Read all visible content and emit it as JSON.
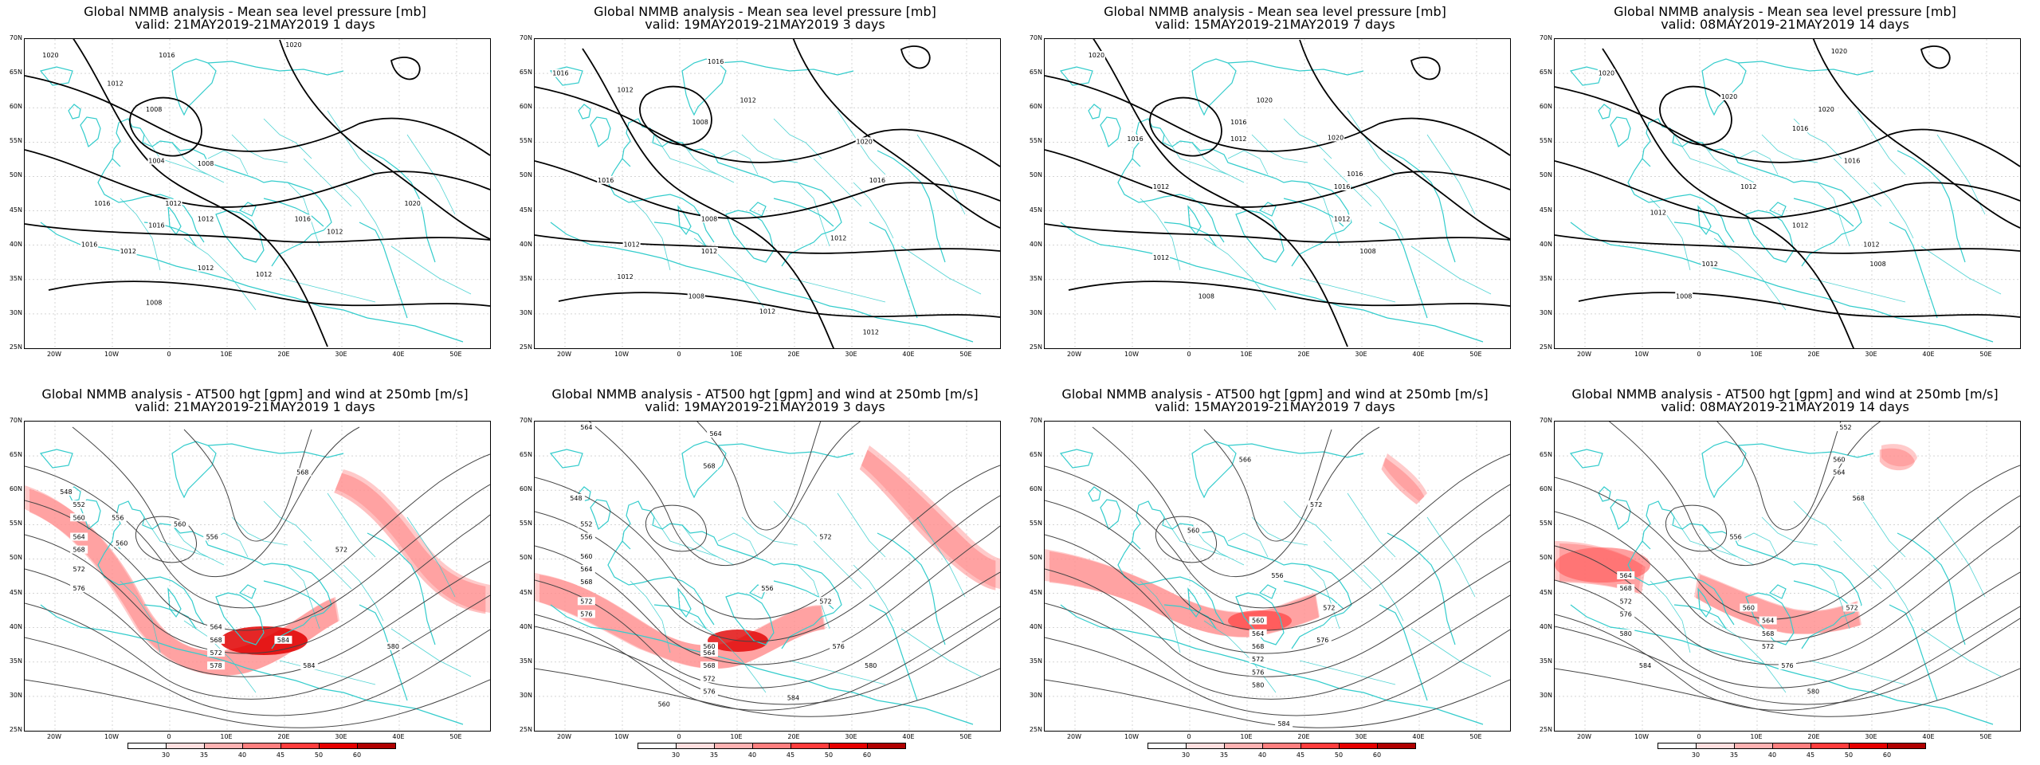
{
  "panels": [
    {
      "title1": "Global NMMB analysis - Mean sea level pressure [mb]",
      "title2": "valid: 21MAY2019-21MAY2019   1 days",
      "kind": "mslp",
      "labels": [
        [
          "1020",
          20,
          13
        ],
        [
          "1016",
          110,
          13
        ],
        [
          "1020",
          208,
          5
        ],
        [
          "1012",
          70,
          35
        ],
        [
          "1008",
          100,
          55
        ],
        [
          "1004",
          102,
          95
        ],
        [
          "1008",
          140,
          97
        ],
        [
          "1012",
          115,
          128
        ],
        [
          "1016",
          60,
          128
        ],
        [
          "1016",
          102,
          145
        ],
        [
          "1012",
          140,
          140
        ],
        [
          "1016",
          215,
          140
        ],
        [
          "1020",
          300,
          128
        ],
        [
          "1012",
          240,
          150
        ],
        [
          "1016",
          50,
          160
        ],
        [
          "1012",
          80,
          165
        ],
        [
          "1012",
          140,
          178
        ],
        [
          "1012",
          185,
          183
        ],
        [
          "1008",
          100,
          205
        ]
      ]
    },
    {
      "title1": "Global NMMB analysis - Mean sea level pressure [mb]",
      "title2": "valid: 19MAY2019-21MAY2019   3 days",
      "kind": "mslp",
      "labels": [
        [
          "1016",
          20,
          27
        ],
        [
          "1016",
          140,
          18
        ],
        [
          "1012",
          70,
          40
        ],
        [
          "1012",
          165,
          48
        ],
        [
          "1008",
          128,
          65
        ],
        [
          "1020",
          255,
          80
        ],
        [
          "1016",
          55,
          110
        ],
        [
          "1016",
          265,
          110
        ],
        [
          "1008",
          135,
          140
        ],
        [
          "1012",
          75,
          160
        ],
        [
          "1012",
          135,
          165
        ],
        [
          "1012",
          235,
          155
        ],
        [
          "1012",
          70,
          185
        ],
        [
          "1008",
          125,
          200
        ],
        [
          "1012",
          180,
          212
        ],
        [
          "1012",
          260,
          228
        ]
      ]
    },
    {
      "title1": "Global NMMB analysis - Mean sea level pressure [mb]",
      "title2": "valid: 15MAY2019-21MAY2019   7 days",
      "kind": "mslp",
      "labels": [
        [
          "1020",
          40,
          13
        ],
        [
          "1020",
          170,
          48
        ],
        [
          "1016",
          150,
          65
        ],
        [
          "1012",
          150,
          78
        ],
        [
          "1016",
          70,
          78
        ],
        [
          "1020",
          225,
          77
        ],
        [
          "1016",
          240,
          105
        ],
        [
          "1012",
          90,
          115
        ],
        [
          "1016",
          230,
          115
        ],
        [
          "1012",
          230,
          140
        ],
        [
          "1012",
          90,
          170
        ],
        [
          "1008",
          250,
          165
        ],
        [
          "1008",
          125,
          200
        ]
      ]
    },
    {
      "title1": "Global NMMB analysis - Mean sea level pressure [mb]",
      "title2": "valid: 08MAY2019-21MAY2019   14 days",
      "kind": "mslp",
      "labels": [
        [
          "1020",
          40,
          27
        ],
        [
          "1020",
          220,
          10
        ],
        [
          "1020",
          135,
          45
        ],
        [
          "1020",
          210,
          55
        ],
        [
          "1016",
          190,
          70
        ],
        [
          "1016",
          230,
          95
        ],
        [
          "1012",
          150,
          115
        ],
        [
          "1012",
          80,
          135
        ],
        [
          "1012",
          190,
          145
        ],
        [
          "1012",
          245,
          160
        ],
        [
          "1012",
          120,
          175
        ],
        [
          "1008",
          250,
          175
        ],
        [
          "1008",
          100,
          200
        ]
      ]
    },
    {
      "title1": "Global NMMB analysis - AT500 hgt [gpm] and wind at 250mb [m/s]",
      "title2": "valid: 21MAY2019-21MAY2019   1 days",
      "kind": "at500",
      "labels": [
        [
          "548",
          32,
          55
        ],
        [
          "552",
          42,
          65
        ],
        [
          "556",
          72,
          75
        ],
        [
          "560",
          42,
          75
        ],
        [
          "560",
          75,
          95
        ],
        [
          "564",
          42,
          90
        ],
        [
          "568",
          42,
          100
        ],
        [
          "572",
          42,
          115
        ],
        [
          "576",
          42,
          130
        ],
        [
          "560",
          120,
          80
        ],
        [
          "556",
          145,
          90
        ],
        [
          "564",
          148,
          160
        ],
        [
          "568",
          148,
          170
        ],
        [
          "572",
          148,
          180
        ],
        [
          "578",
          148,
          190
        ],
        [
          "584",
          200,
          170
        ],
        [
          "572",
          245,
          100
        ],
        [
          "568",
          215,
          40
        ],
        [
          "584",
          220,
          190
        ],
        [
          "580",
          285,
          175
        ]
      ]
    },
    {
      "title1": "Global NMMB analysis - AT500 hgt [gpm] and wind at 250mb [m/s]",
      "title2": "valid: 19MAY2019-21MAY2019   3 days",
      "kind": "at500",
      "labels": [
        [
          "564",
          40,
          5
        ],
        [
          "564",
          140,
          10
        ],
        [
          "568",
          135,
          35
        ],
        [
          "548",
          32,
          60
        ],
        [
          "552",
          40,
          80
        ],
        [
          "556",
          40,
          90
        ],
        [
          "560",
          40,
          105
        ],
        [
          "564",
          40,
          115
        ],
        [
          "568",
          40,
          125
        ],
        [
          "572",
          40,
          140
        ],
        [
          "576",
          40,
          150
        ],
        [
          "560",
          135,
          175
        ],
        [
          "564",
          135,
          180
        ],
        [
          "568",
          135,
          190
        ],
        [
          "572",
          135,
          200
        ],
        [
          "576",
          135,
          210
        ],
        [
          "556",
          180,
          130
        ],
        [
          "572",
          225,
          90
        ],
        [
          "572",
          225,
          140
        ],
        [
          "576",
          235,
          175
        ],
        [
          "580",
          260,
          190
        ],
        [
          "584",
          200,
          215
        ],
        [
          "560",
          100,
          220
        ]
      ]
    },
    {
      "title1": "Global NMMB analysis - AT500 hgt [gpm] and wind at 250mb [m/s]",
      "title2": "valid: 15MAY2019-21MAY2019   7 days",
      "kind": "at500",
      "labels": [
        [
          "560",
          115,
          85
        ],
        [
          "566",
          155,
          30
        ],
        [
          "572",
          210,
          65
        ],
        [
          "556",
          180,
          120
        ],
        [
          "560",
          165,
          155
        ],
        [
          "564",
          165,
          165
        ],
        [
          "568",
          165,
          175
        ],
        [
          "572",
          165,
          185
        ],
        [
          "576",
          165,
          195
        ],
        [
          "580",
          165,
          205
        ],
        [
          "572",
          220,
          145
        ],
        [
          "576",
          215,
          170
        ],
        [
          "584",
          185,
          235
        ]
      ]
    },
    {
      "title1": "Global NMMB analysis - AT500 hgt [gpm] and wind at 250mb [m/s]",
      "title2": "valid: 08MAY2019-21MAY2019   14 days",
      "kind": "at500",
      "labels": [
        [
          "552",
          225,
          5
        ],
        [
          "560",
          220,
          30
        ],
        [
          "564",
          220,
          40
        ],
        [
          "568",
          235,
          60
        ],
        [
          "556",
          140,
          90
        ],
        [
          "564",
          55,
          120
        ],
        [
          "568",
          55,
          130
        ],
        [
          "572",
          55,
          140
        ],
        [
          "576",
          55,
          150
        ],
        [
          "580",
          55,
          165
        ],
        [
          "584",
          70,
          190
        ],
        [
          "560",
          150,
          145
        ],
        [
          "564",
          165,
          155
        ],
        [
          "568",
          165,
          165
        ],
        [
          "572",
          165,
          175
        ],
        [
          "576",
          180,
          190
        ],
        [
          "572",
          230,
          145
        ],
        [
          "580",
          200,
          210
        ]
      ]
    }
  ],
  "lat_labels": [
    "70N",
    "65N",
    "60N",
    "55N",
    "50N",
    "45N",
    "40N",
    "35N",
    "30N",
    "25N"
  ],
  "lon_labels": [
    "20W",
    "10W",
    "0",
    "10E",
    "20E",
    "30E",
    "40E",
    "50E"
  ],
  "colorbar": {
    "labels": [
      "30",
      "35",
      "40",
      "45",
      "50",
      "60"
    ],
    "colors": [
      "#ffffff",
      "#ffe0e0",
      "#ffb3b3",
      "#ff7f7f",
      "#ff3d3d",
      "#e60000",
      "#b00000"
    ]
  },
  "colors": {
    "coast": "#33cccc",
    "contour": "#000000",
    "grid": "#bbbbbb",
    "jet": "#ff3030"
  }
}
